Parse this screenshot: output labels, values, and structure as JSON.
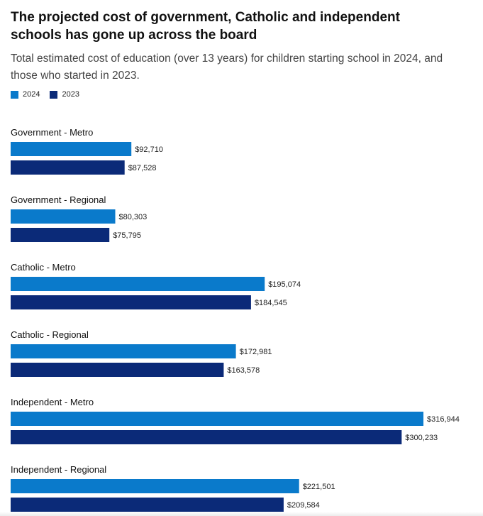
{
  "chart_data": {
    "type": "bar",
    "orientation": "horizontal",
    "title": "The projected cost of government, Catholic and independent schools has gone up across the board",
    "subtitle": "Total estimated cost of education (over 13 years) for children starting school in 2024, and those who started in 2023.",
    "legend_position": "top-left",
    "grid": false,
    "xlim": [
      0,
      330000
    ],
    "categories": [
      "Government - Metro",
      "Government - Regional",
      "Catholic - Metro",
      "Catholic - Regional",
      "Independent - Metro",
      "Independent - Regional"
    ],
    "series": [
      {
        "name": "2024",
        "color": "#0a7acb",
        "values": [
          92710,
          80303,
          195074,
          172981,
          316944,
          221501
        ],
        "labels": [
          "$92,710",
          "$80,303",
          "$195,074",
          "$172,981",
          "$316,944",
          "$221,501"
        ]
      },
      {
        "name": "2023",
        "color": "#0b2a78",
        "values": [
          87528,
          75795,
          184545,
          163578,
          300233,
          209584
        ],
        "labels": [
          "$87,528",
          "$75,795",
          "$184,545",
          "$163,578",
          "$300,233",
          "$209,584"
        ]
      }
    ]
  }
}
